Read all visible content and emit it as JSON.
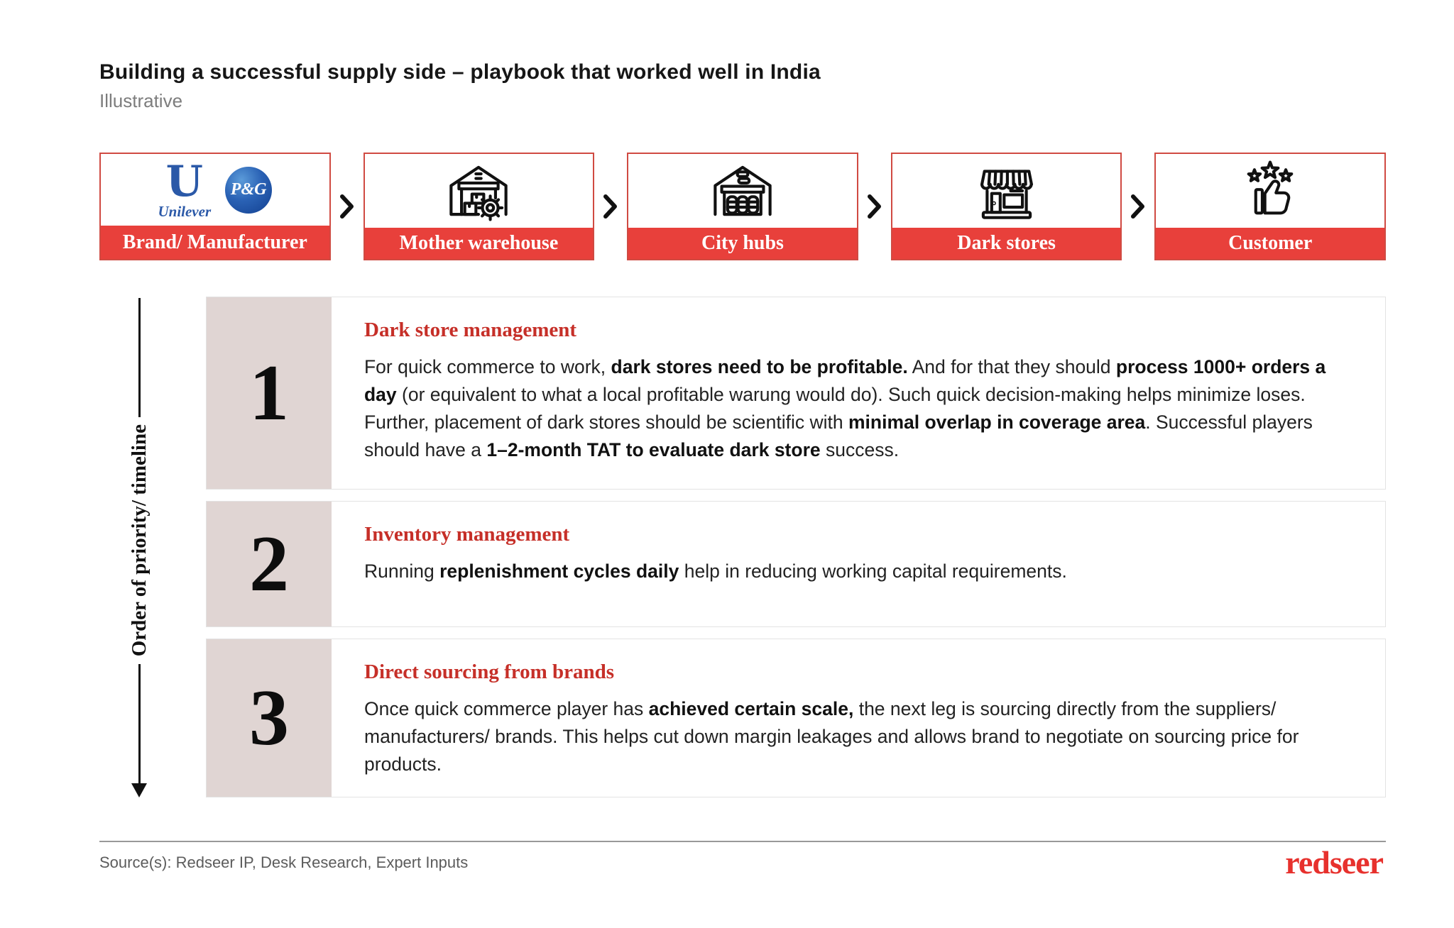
{
  "header": {
    "title": "Building a successful supply side – playbook that worked well in India",
    "subtitle": "Illustrative"
  },
  "flow": {
    "stages": [
      {
        "label": "Brand/ Manufacturer",
        "icon": "unilever-and-pg-logos",
        "unilever_u": "U",
        "unilever_text": "Unilever",
        "pg_text": "P&G"
      },
      {
        "label": "Mother warehouse",
        "icon": "warehouse-with-gear-icon"
      },
      {
        "label": "City hubs",
        "icon": "warehouse-with-barrels-icon"
      },
      {
        "label": "Dark stores",
        "icon": "storefront-awning-icon"
      },
      {
        "label": "Customer",
        "icon": "thumbs-up-stars-icon"
      }
    ]
  },
  "timeline_label": "Order of priority/ timeline",
  "sections": [
    {
      "number": "1",
      "heading": "Dark store management",
      "body": [
        {
          "t": "For quick commerce to work, ",
          "b": 0
        },
        {
          "t": "dark stores need to be profitable.",
          "b": 1
        },
        {
          "t": " And for that they should ",
          "b": 0
        },
        {
          "t": "process 1000+ orders a day",
          "b": 1
        },
        {
          "t": " (or equivalent to what a local profitable warung would do). Such quick decision-making helps minimize loses. Further, placement of dark stores should be scientific with ",
          "b": 0
        },
        {
          "t": "minimal overlap in coverage area",
          "b": 1
        },
        {
          "t": ". Successful players should have a ",
          "b": 0
        },
        {
          "t": "1–2-month TAT to evaluate dark store",
          "b": 1
        },
        {
          "t": " success.",
          "b": 0
        }
      ]
    },
    {
      "number": "2",
      "heading": "Inventory management",
      "body": [
        {
          "t": "Running ",
          "b": 0
        },
        {
          "t": "replenishment cycles daily",
          "b": 1
        },
        {
          "t": " help in reducing working capital requirements.",
          "b": 0
        }
      ]
    },
    {
      "number": "3",
      "heading": "Direct sourcing from brands",
      "body": [
        {
          "t": "Once quick commerce player has ",
          "b": 0
        },
        {
          "t": "achieved certain scale,",
          "b": 1
        },
        {
          "t": " the next leg is sourcing directly from the suppliers/ manufacturers/ brands. This helps cut down margin leakages and allows brand to negotiate on sourcing price for products.",
          "b": 0
        }
      ]
    }
  ],
  "footer": {
    "source": "Source(s): Redseer IP, Desk Research, Expert Inputs",
    "logo": "redseer"
  },
  "colors": {
    "brand_red": "#E8403B",
    "heading_red": "#C62F28",
    "number_bg": "#E0D5D3",
    "logo_red": "#E7312D"
  }
}
